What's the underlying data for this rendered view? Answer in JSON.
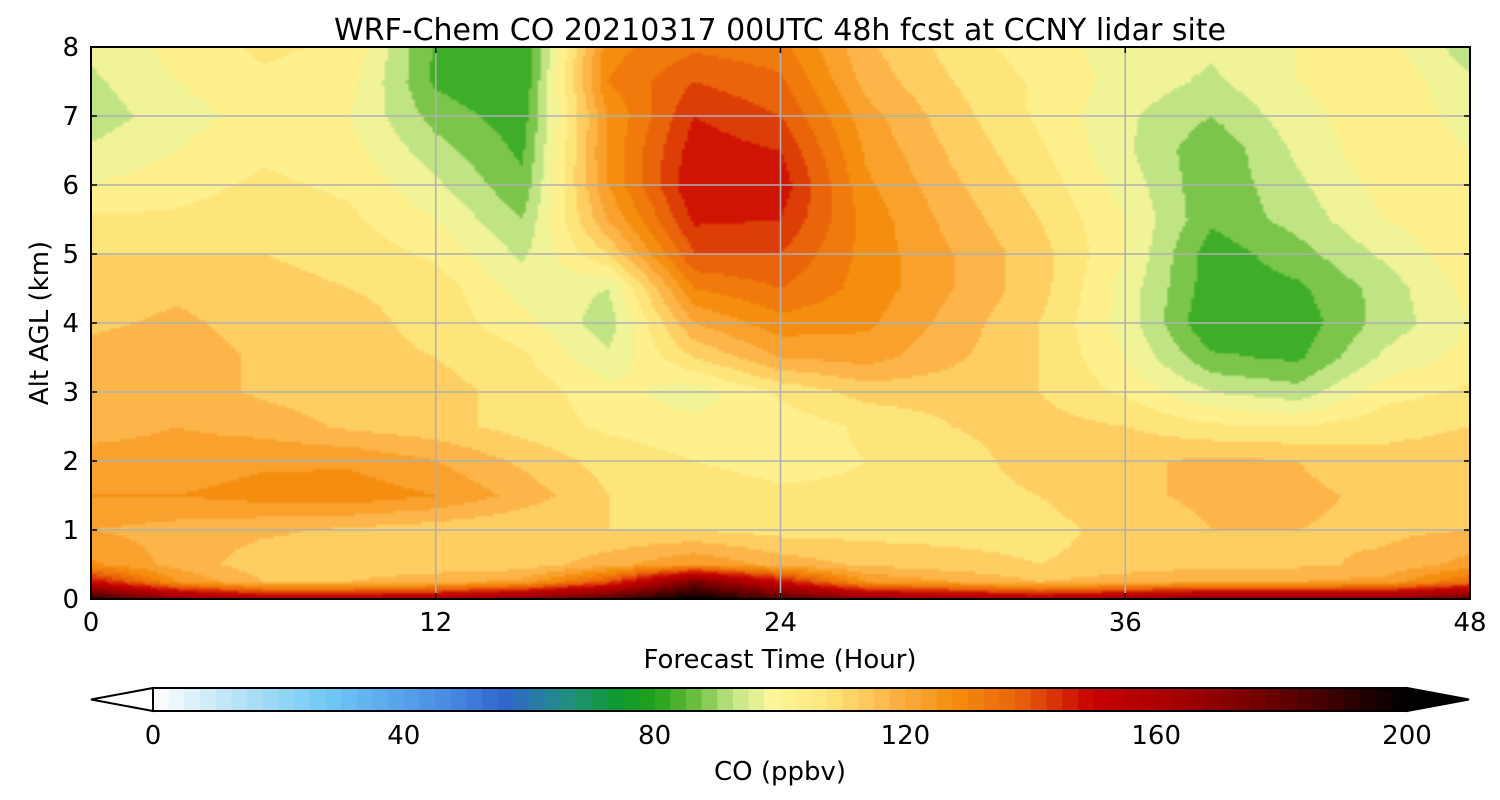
{
  "chart_data": {
    "type": "heatmap",
    "title": "WRF-Chem CO  20210317 00UTC 48h fcst at CCNY lidar site",
    "xlabel": "Forecast Time (Hour)",
    "ylabel": "Alt AGL (km)",
    "xlim": [
      0,
      48
    ],
    "ylim": [
      0,
      8
    ],
    "xticks": [
      0,
      12,
      24,
      36,
      48
    ],
    "yticks": [
      0,
      1,
      2,
      3,
      4,
      5,
      6,
      7,
      8
    ],
    "grid": true,
    "x_hours": [
      0,
      3,
      6,
      9,
      12,
      15,
      18,
      21,
      24,
      27,
      30,
      33,
      36,
      39,
      42,
      45,
      48
    ],
    "y_km": [
      0,
      0.25,
      0.5,
      1,
      1.5,
      2,
      2.5,
      3,
      3.5,
      4,
      4.5,
      5,
      5.5,
      6,
      6.5,
      7,
      7.5,
      8
    ],
    "values_ppbv": [
      [
        192,
        170,
        160,
        160,
        162,
        172,
        185,
        200,
        185,
        170,
        165,
        160,
        165,
        172,
        172,
        170,
        180
      ],
      [
        150,
        125,
        115,
        115,
        118,
        122,
        140,
        175,
        150,
        125,
        120,
        115,
        118,
        120,
        120,
        122,
        135
      ],
      [
        126,
        118,
        112,
        112,
        112,
        112,
        118,
        125,
        118,
        114,
        112,
        110,
        112,
        114,
        114,
        116,
        122
      ],
      [
        120,
        118,
        116,
        114,
        112,
        110,
        110,
        110,
        108,
        108,
        108,
        108,
        112,
        115,
        115,
        114,
        115
      ],
      [
        125,
        125,
        127,
        128,
        125,
        118,
        110,
        108,
        106,
        106,
        108,
        110,
        114,
        116,
        116,
        114,
        114
      ],
      [
        122,
        122,
        124,
        124,
        120,
        114,
        108,
        105,
        103,
        105,
        108,
        112,
        114,
        116,
        115,
        112,
        113
      ],
      [
        118,
        120,
        118,
        114,
        112,
        108,
        104,
        102,
        102,
        106,
        110,
        112,
        110,
        106,
        105,
        108,
        110
      ],
      [
        116,
        118,
        114,
        112,
        112,
        108,
        102,
        97,
        106,
        112,
        112,
        110,
        104,
        95,
        92,
        103,
        106
      ],
      [
        117,
        118,
        114,
        112,
        110,
        106,
        96,
        110,
        120,
        122,
        116,
        110,
        100,
        86,
        84,
        96,
        102
      ],
      [
        114,
        116,
        113,
        112,
        108,
        102,
        92,
        120,
        128,
        126,
        118,
        110,
        98,
        80,
        82,
        92,
        100
      ],
      [
        112,
        114,
        112,
        110,
        108,
        98,
        95,
        130,
        135,
        128,
        120,
        112,
        98,
        82,
        84,
        92,
        102
      ],
      [
        110,
        110,
        110,
        108,
        104,
        94,
        110,
        140,
        140,
        128,
        120,
        112,
        100,
        82,
        88,
        96,
        104
      ],
      [
        106,
        106,
        108,
        106,
        100,
        90,
        120,
        146,
        145,
        128,
        118,
        110,
        100,
        86,
        92,
        100,
        104
      ],
      [
        100,
        103,
        106,
        104,
        96,
        86,
        125,
        150,
        148,
        126,
        116,
        108,
        98,
        86,
        94,
        102,
        102
      ],
      [
        96,
        100,
        104,
        102,
        92,
        84,
        126,
        148,
        145,
        124,
        114,
        106,
        96,
        86,
        96,
        104,
        100
      ],
      [
        92,
        98,
        102,
        100,
        88,
        82,
        125,
        145,
        140,
        122,
        112,
        104,
        96,
        90,
        98,
        104,
        98
      ],
      [
        94,
        100,
        104,
        102,
        84,
        80,
        130,
        140,
        136,
        118,
        110,
        104,
        98,
        94,
        100,
        104,
        96
      ],
      [
        96,
        102,
        106,
        104,
        84,
        80,
        128,
        134,
        132,
        116,
        108,
        102,
        98,
        96,
        100,
        102,
        92
      ]
    ],
    "colorbar": {
      "label": "CO  (ppbv)",
      "min": 0,
      "max": 200,
      "ticks": [
        0,
        40,
        80,
        120,
        160,
        200
      ],
      "extend": "both",
      "colors": [
        {
          "v": 0,
          "c": "#ffffff"
        },
        {
          "v": 12,
          "c": "#bfe5f7"
        },
        {
          "v": 28,
          "c": "#6ec8f5"
        },
        {
          "v": 48,
          "c": "#4687e3"
        },
        {
          "v": 56,
          "c": "#2f66cc"
        },
        {
          "v": 66,
          "c": "#1f8f82"
        },
        {
          "v": 74,
          "c": "#109a30"
        },
        {
          "v": 80,
          "c": "#21a219"
        },
        {
          "v": 86,
          "c": "#66bc3a"
        },
        {
          "v": 93,
          "c": "#c7e78a"
        },
        {
          "v": 99,
          "c": "#fdf79b"
        },
        {
          "v": 108,
          "c": "#fee478"
        },
        {
          "v": 118,
          "c": "#fdb347"
        },
        {
          "v": 128,
          "c": "#f58c0c"
        },
        {
          "v": 138,
          "c": "#e9630a"
        },
        {
          "v": 150,
          "c": "#c80000"
        },
        {
          "v": 165,
          "c": "#a00000"
        },
        {
          "v": 182,
          "c": "#5a0000"
        },
        {
          "v": 200,
          "c": "#000000"
        }
      ]
    }
  }
}
